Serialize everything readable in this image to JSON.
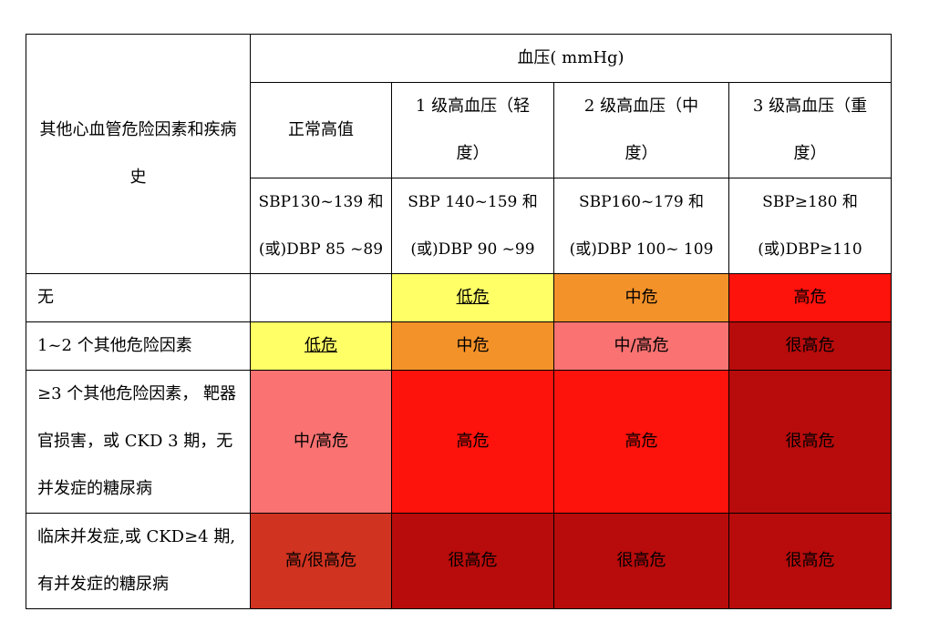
{
  "colors": {
    "blank": "#ffffff",
    "low": "#ffff66",
    "medium": "#f4922a",
    "medium_high": "#fa7272",
    "high": "#fe120c",
    "high_very_high": "#d03320",
    "very_high": "#b80b0b"
  },
  "table": {
    "row_header": "其他心血管危险因素和疾病史",
    "bp_header": "血压( mmHg)",
    "grades": [
      {
        "name": "正常高值",
        "criteria": "SBP130~139 和(或)DBP 85 ~89"
      },
      {
        "name": "1 级高血压（轻度）",
        "criteria": "SBP 140~159 和(或)DBP 90 ~99"
      },
      {
        "name": "2 级高血压（中度）",
        "criteria": "SBP160~179 和(或)DBP 100~ 109"
      },
      {
        "name": "3 级高血压（重度）",
        "criteria": "SBP≥180 和(或)DBP≥110"
      }
    ],
    "rows": [
      {
        "label": "无",
        "cells": [
          {
            "text": "",
            "level": "blank",
            "underline": false
          },
          {
            "text": "低危",
            "level": "low",
            "underline": true
          },
          {
            "text": "中危",
            "level": "medium",
            "underline": false
          },
          {
            "text": "高危",
            "level": "high",
            "underline": false
          }
        ]
      },
      {
        "label": "1~2 个其他危险因素",
        "cells": [
          {
            "text": "低危",
            "level": "low",
            "underline": true
          },
          {
            "text": "中危",
            "level": "medium",
            "underline": false
          },
          {
            "text": "中/高危",
            "level": "medium_high",
            "underline": false
          },
          {
            "text": "很高危",
            "level": "very_high",
            "underline": false
          }
        ]
      },
      {
        "label": "≥3 个其他危险因素， 靶器官损害，或 CKD 3 期，无并发症的糖尿病",
        "cells": [
          {
            "text": "中/高危",
            "level": "medium_high",
            "underline": false
          },
          {
            "text": "高危",
            "level": "high",
            "underline": false
          },
          {
            "text": "高危",
            "level": "high",
            "underline": false
          },
          {
            "text": "很高危",
            "level": "very_high",
            "underline": false
          }
        ]
      },
      {
        "label": "临床并发症,或 CKD≥4 期,有并发症的糖尿病",
        "cells": [
          {
            "text": "高/很高危",
            "level": "high_very_high",
            "underline": false
          },
          {
            "text": "很高危",
            "level": "very_high",
            "underline": false
          },
          {
            "text": "很高危",
            "level": "very_high",
            "underline": false
          },
          {
            "text": "很高危",
            "level": "very_high",
            "underline": false
          }
        ]
      }
    ]
  }
}
